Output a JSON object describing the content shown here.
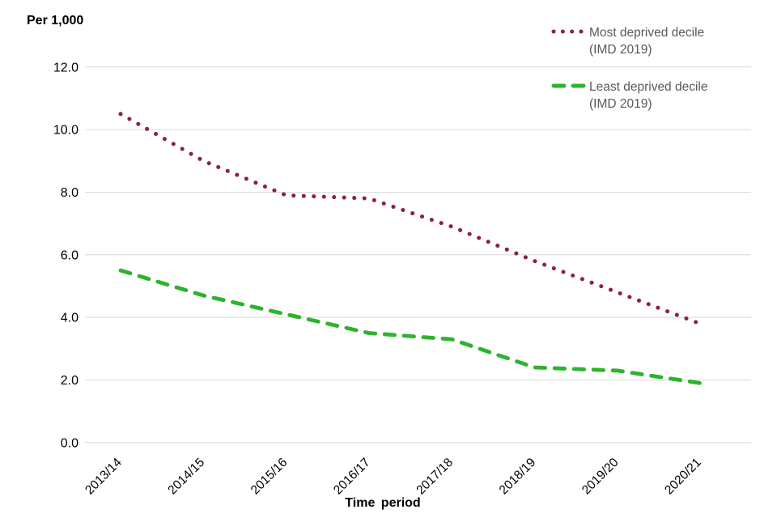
{
  "chart_data": {
    "type": "line",
    "title": "",
    "ylabel": "Per 1,000",
    "xlabel": "Time period",
    "categories": [
      "2013/14",
      "2014/15",
      "2015/16",
      "2016/17",
      "2017/18",
      "2018/19",
      "2019/20",
      "2020/21"
    ],
    "ylim": [
      0,
      12
    ],
    "y_tick_step": 2,
    "y_tick_labels": [
      "0.0",
      "2.0",
      "4.0",
      "6.0",
      "8.0",
      "10.0",
      "12.0"
    ],
    "grid": "horizontal",
    "gridline_color": "#d9d9d9",
    "axis_text_color": "#000000",
    "legend_position": "top-right",
    "legend_text_color": "#595959",
    "background": "#ffffff",
    "series": [
      {
        "id": "most-deprived-decile",
        "name": "Most deprived decile (IMD 2019)",
        "legend_lines": [
          "Most deprived decile",
          "(IMD 2019)"
        ],
        "color": "#8e2045",
        "line_style": "dotted",
        "values": [
          10.5,
          9.0,
          7.9,
          7.8,
          6.9,
          5.8,
          4.8,
          3.8
        ]
      },
      {
        "id": "least-deprived-decile",
        "name": "Least deprived decile (IMD 2019)",
        "legend_lines": [
          "Least deprived decile",
          "(IMD 2019)"
        ],
        "color": "#2db42d",
        "line_style": "dashed",
        "values": [
          5.5,
          4.7,
          4.1,
          3.5,
          3.3,
          2.4,
          2.3,
          1.9
        ]
      }
    ]
  }
}
